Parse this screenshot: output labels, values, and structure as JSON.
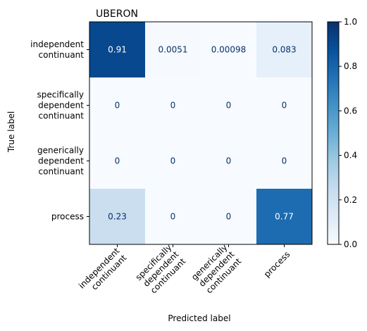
{
  "chart_data": {
    "type": "heatmap",
    "title": "UBERON",
    "xlabel": "Predicted label",
    "ylabel": "True label",
    "row_labels": [
      [
        "independent",
        "continuant"
      ],
      [
        "specifically",
        "dependent",
        "continuant"
      ],
      [
        "generically",
        "dependent",
        "continuant"
      ],
      [
        "process"
      ]
    ],
    "col_labels": [
      [
        "independent",
        "continuant"
      ],
      [
        "specifically",
        "dependent",
        "continuant"
      ],
      [
        "generically",
        "dependent",
        "continuant"
      ],
      [
        "process"
      ]
    ],
    "values": [
      [
        0.91,
        0.0051,
        0.00098,
        0.083
      ],
      [
        0,
        0,
        0,
        0
      ],
      [
        0,
        0,
        0,
        0
      ],
      [
        0.23,
        0,
        0,
        0.77
      ]
    ],
    "value_labels": [
      [
        "0.91",
        "0.0051",
        "0.00098",
        "0.083"
      ],
      [
        "0",
        "0",
        "0",
        "0"
      ],
      [
        "0",
        "0",
        "0",
        "0"
      ],
      [
        "0.23",
        "0",
        "0",
        "0.77"
      ]
    ],
    "colormap": "Blues",
    "colorbar": {
      "range": [
        0,
        1
      ],
      "ticks": [
        "0.0",
        "0.2",
        "0.4",
        "0.6",
        "0.8",
        "1.0"
      ]
    }
  }
}
